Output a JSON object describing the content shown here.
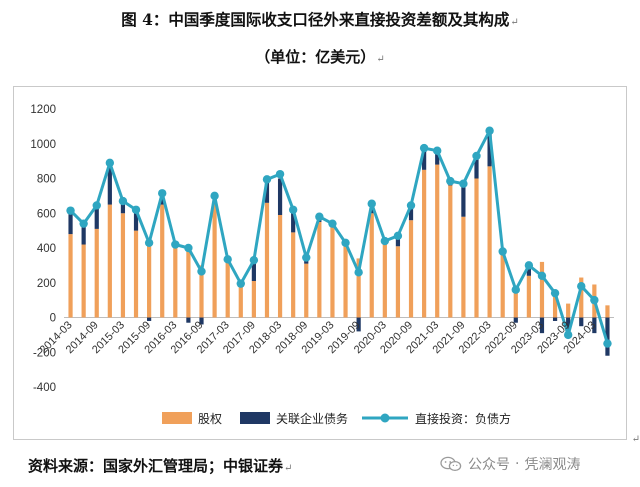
{
  "page": {
    "title": "图 4：中国季度国际收支口径外来直接投资差额及其构成",
    "unit": "（单位：亿美元）",
    "para_mark": "↵",
    "source": "资料来源：国家外汇管理局；中银证券",
    "watermark": {
      "platform": "公众号",
      "separator": "·",
      "account": "凭澜观涛",
      "icon": "wechat-icon"
    }
  },
  "chart_data": {
    "type": "bar",
    "stacked": true,
    "ylim": [
      -400,
      1200
    ],
    "yticks": [
      -400,
      -200,
      0,
      200,
      400,
      600,
      800,
      1000,
      1200
    ],
    "xticklabels": [
      "2014-03",
      "2014-09",
      "2015-03",
      "2015-09",
      "2016-03",
      "2016-09",
      "2017-03",
      "2017-09",
      "2018-03",
      "2018-09",
      "2019-03",
      "2019-09",
      "2020-03",
      "2020-09",
      "2021-03",
      "2021-09",
      "2022-03",
      "2022-09",
      "2023-03",
      "2023-09",
      "2024-03"
    ],
    "categories": [
      "2014Q1",
      "2014Q2",
      "2014Q3",
      "2014Q4",
      "2015Q1",
      "2015Q2",
      "2015Q3",
      "2015Q4",
      "2016Q1",
      "2016Q2",
      "2016Q3",
      "2016Q4",
      "2017Q1",
      "2017Q2",
      "2017Q3",
      "2017Q4",
      "2018Q1",
      "2018Q2",
      "2018Q3",
      "2018Q4",
      "2019Q1",
      "2019Q2",
      "2019Q3",
      "2019Q4",
      "2020Q1",
      "2020Q2",
      "2020Q3",
      "2020Q4",
      "2021Q1",
      "2021Q2",
      "2021Q3",
      "2021Q4",
      "2022Q1",
      "2022Q2",
      "2022Q3",
      "2022Q4",
      "2023Q1",
      "2023Q2",
      "2023Q3",
      "2023Q4",
      "2024Q1",
      "2024Q2"
    ],
    "series": [
      {
        "name": "股权",
        "kind": "bar",
        "color": "#F0A05A",
        "values": [
          480,
          420,
          510,
          650,
          600,
          500,
          440,
          650,
          400,
          390,
          300,
          660,
          320,
          190,
          210,
          660,
          590,
          490,
          310,
          550,
          520,
          430,
          340,
          600,
          430,
          410,
          560,
          850,
          880,
          760,
          580,
          800,
          870,
          370,
          150,
          240,
          320,
          120,
          80,
          230,
          190,
          70
        ]
      },
      {
        "name": "关联企业债务",
        "kind": "bar",
        "color": "#1F3864",
        "values": [
          130,
          110,
          130,
          230,
          70,
          120,
          -20,
          60,
          20,
          -30,
          -40,
          30,
          10,
          10,
          110,
          130,
          210,
          130,
          40,
          30,
          20,
          0,
          -80,
          50,
          10,
          60,
          80,
          120,
          80,
          20,
          190,
          130,
          200,
          30,
          -30,
          70,
          -90,
          -20,
          -70,
          -50,
          -90,
          -220
        ]
      },
      {
        "name": "直接投资：负债方",
        "kind": "line",
        "color": "#2FA6C1",
        "values": [
          615,
          540,
          645,
          890,
          670,
          620,
          430,
          715,
          420,
          400,
          265,
          700,
          335,
          195,
          330,
          795,
          825,
          620,
          345,
          580,
          540,
          430,
          260,
          655,
          440,
          470,
          645,
          975,
          960,
          785,
          770,
          930,
          1075,
          380,
          160,
          300,
          240,
          140,
          -100,
          180,
          100,
          -150
        ]
      }
    ],
    "legend": {
      "position": "bottom"
    },
    "grid": false
  }
}
